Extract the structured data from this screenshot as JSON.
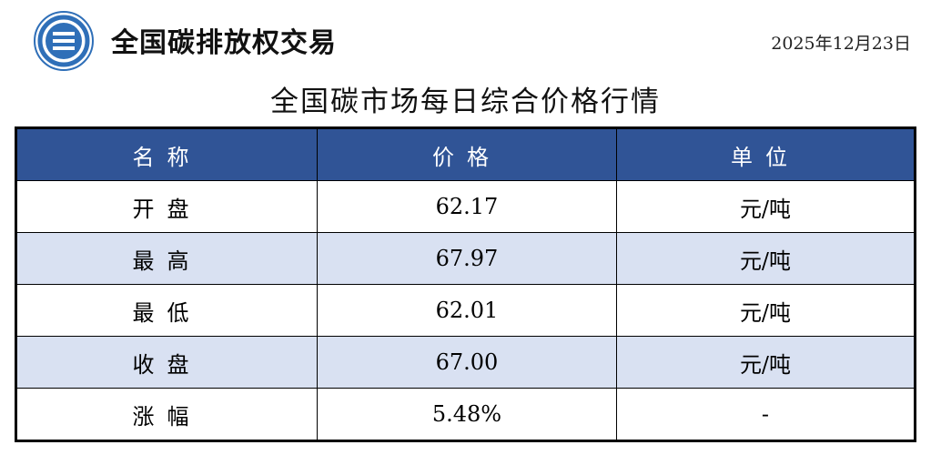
{
  "header": {
    "brand": "全国碳排放权交易",
    "date": "2025年12月23日",
    "logo_icon": "exchange-logo"
  },
  "title": "全国碳市场每日综合价格行情",
  "table": {
    "columns": [
      "名称",
      "价格",
      "单位"
    ],
    "rows": [
      {
        "name": "开盘",
        "price": "62.17",
        "unit": "元/吨"
      },
      {
        "name": "最高",
        "price": "67.97",
        "unit": "元/吨"
      },
      {
        "name": "最低",
        "price": "62.01",
        "unit": "元/吨"
      },
      {
        "name": "收盘",
        "price": "67.00",
        "unit": "元/吨"
      },
      {
        "name": "涨幅",
        "price": "5.48%",
        "unit": "-"
      }
    ]
  },
  "colors": {
    "header": "#305496",
    "alt_row": "#d9e1f2"
  }
}
